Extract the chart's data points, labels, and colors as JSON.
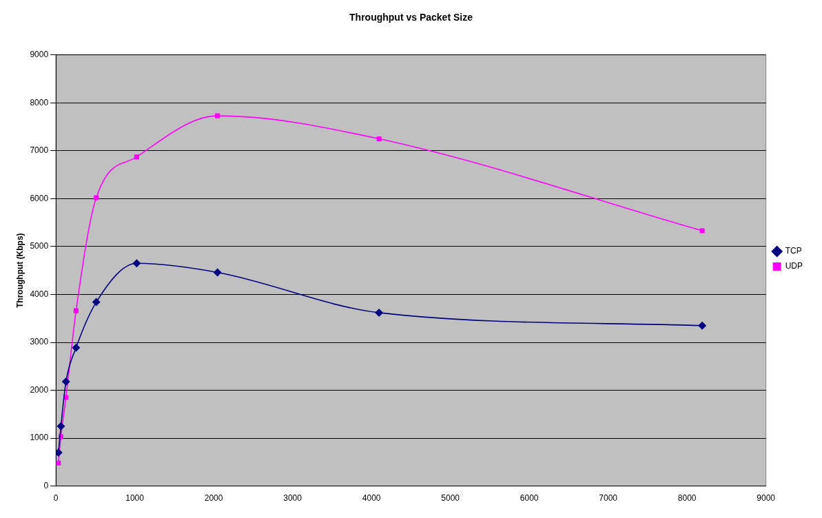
{
  "chart_data": {
    "type": "scatter",
    "title": "Throughput vs Packet Size",
    "ylabel": "Throughput (Kbps)",
    "xlim": [
      0,
      9000
    ],
    "xticks": [
      0,
      1000,
      2000,
      3000,
      4000,
      5000,
      6000,
      7000,
      8000,
      9000
    ],
    "ylim": [
      0,
      9000
    ],
    "yticks": [
      0,
      1000,
      2000,
      3000,
      4000,
      5000,
      6000,
      7000,
      8000,
      9000
    ],
    "grid": "y",
    "legend": "right",
    "series": [
      {
        "name": "TCP",
        "type": "line",
        "color": "#000080",
        "marker": "diamond",
        "x": [
          32,
          64,
          128,
          256,
          512,
          1024,
          2048,
          4096,
          8192
        ],
        "values": [
          700,
          1250,
          2180,
          2890,
          3840,
          4650,
          4460,
          3620,
          3350
        ]
      },
      {
        "name": "UDP",
        "type": "line",
        "color": "#ff00ff",
        "marker": "square",
        "x": [
          32,
          64,
          128,
          256,
          512,
          1024,
          2048,
          4096,
          8192
        ],
        "values": [
          480,
          1030,
          1850,
          3660,
          6020,
          6870,
          7730,
          7250,
          5330
        ]
      }
    ]
  }
}
